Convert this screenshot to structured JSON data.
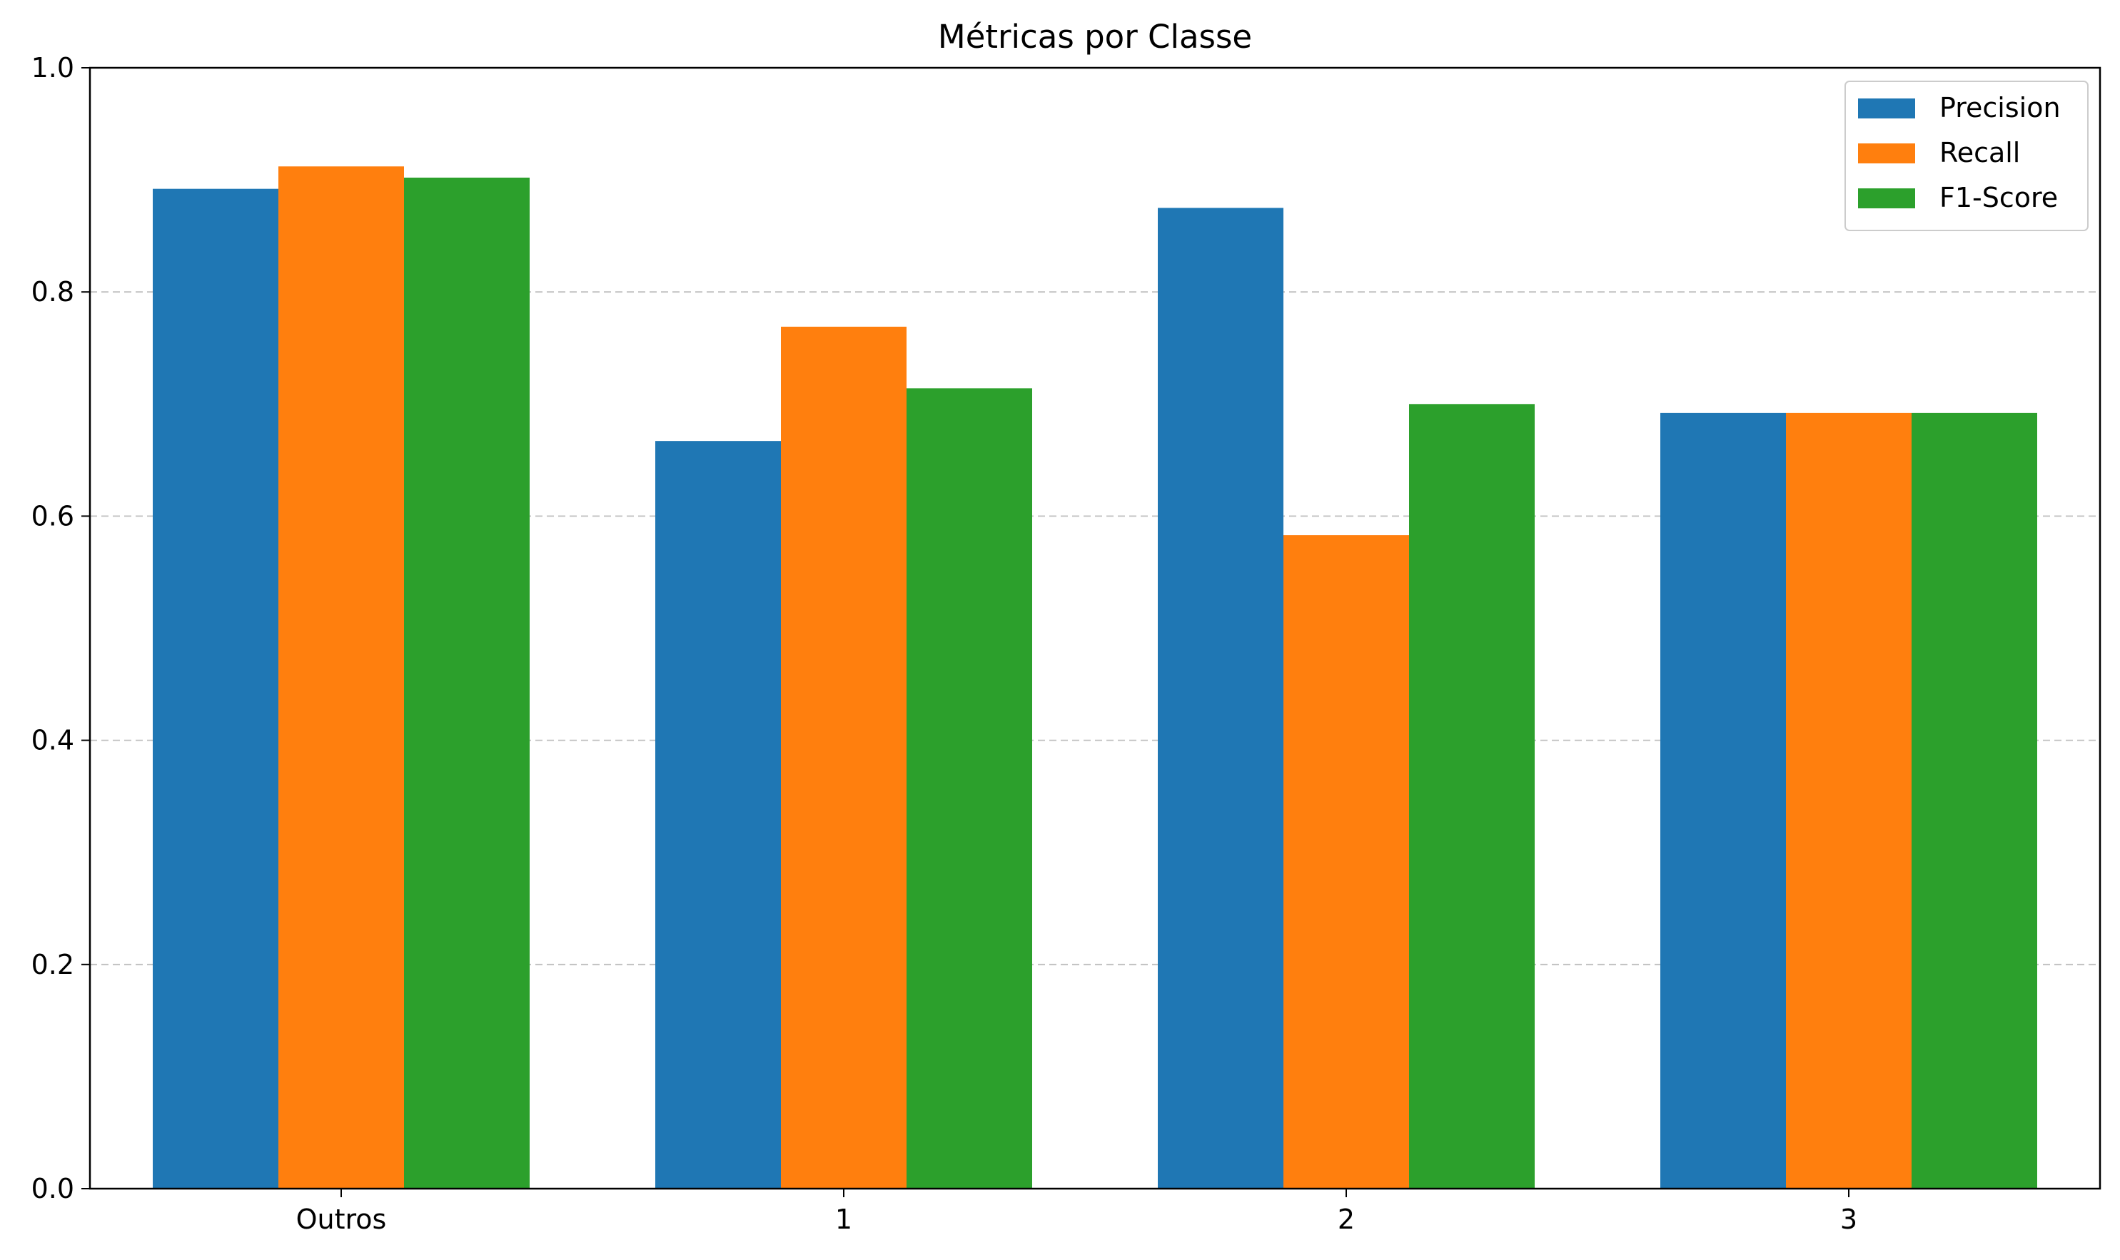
{
  "chart_data": {
    "type": "bar",
    "title": "Métricas por Classe",
    "xlabel": "",
    "ylabel": "",
    "categories": [
      "Outros",
      "1",
      "2",
      "3"
    ],
    "series": [
      {
        "name": "Precision",
        "color": "#1f77b4",
        "values": [
          0.892,
          0.667,
          0.875,
          0.692
        ]
      },
      {
        "name": "Recall",
        "color": "#ff7f0e",
        "values": [
          0.912,
          0.769,
          0.583,
          0.692
        ]
      },
      {
        "name": "F1-Score",
        "color": "#2ca02c",
        "values": [
          0.902,
          0.714,
          0.7,
          0.692
        ]
      }
    ],
    "ylim": [
      0,
      1.0
    ],
    "yticks": [
      "0.0",
      "0.2",
      "0.4",
      "0.6",
      "0.8",
      "1.0"
    ],
    "grid": "y dashed",
    "legend_position": "top-right"
  }
}
